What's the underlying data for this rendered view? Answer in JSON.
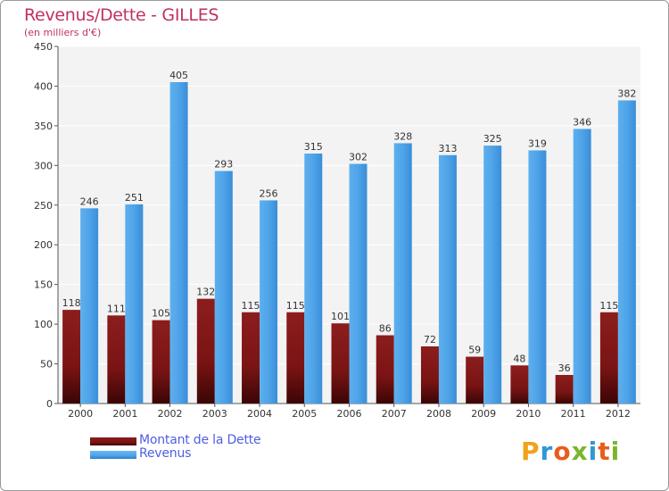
{
  "header": {
    "title": "Revenus/Dette - GILLES",
    "subtitle": "(en milliers d'€)"
  },
  "colors": {
    "debt": "#7a1414",
    "revenue": "#4fa3e8",
    "title": "#c0325e",
    "legend_text": "#4d5fe0"
  },
  "chart_data": {
    "type": "bar",
    "title": "Revenus/Dette - GILLES",
    "subtitle": "(en milliers d'€)",
    "xlabel": "",
    "ylabel": "",
    "ylim": [
      0,
      450
    ],
    "yticks": [
      "0",
      "50",
      "100",
      "150",
      "200",
      "250",
      "300",
      "350",
      "400",
      "450"
    ],
    "grid": true,
    "legend_position": "bottom-left",
    "categories": [
      "2000",
      "2001",
      "2002",
      "2003",
      "2004",
      "2005",
      "2006",
      "2007",
      "2008",
      "2009",
      "2010",
      "2011",
      "2012"
    ],
    "series": [
      {
        "name": "Montant de la Dette",
        "values": [
          118,
          111,
          105,
          132,
          115,
          115,
          101,
          86,
          72,
          59,
          48,
          36,
          115
        ]
      },
      {
        "name": "Revenus",
        "values": [
          246,
          251,
          405,
          293,
          256,
          315,
          302,
          328,
          313,
          325,
          319,
          346,
          382
        ]
      }
    ]
  },
  "legend": {
    "items": [
      {
        "label": "Montant de la Dette"
      },
      {
        "label": "Revenus"
      }
    ]
  },
  "logo": {
    "letters": [
      "P",
      "r",
      "o",
      "x",
      "i",
      "t",
      "i"
    ],
    "letter_colors": [
      "#f0a21c",
      "#2f97d6",
      "#e85c1b",
      "#7ab62c",
      "#2f97d6",
      "#e85c1b",
      "#7ab62c"
    ]
  }
}
